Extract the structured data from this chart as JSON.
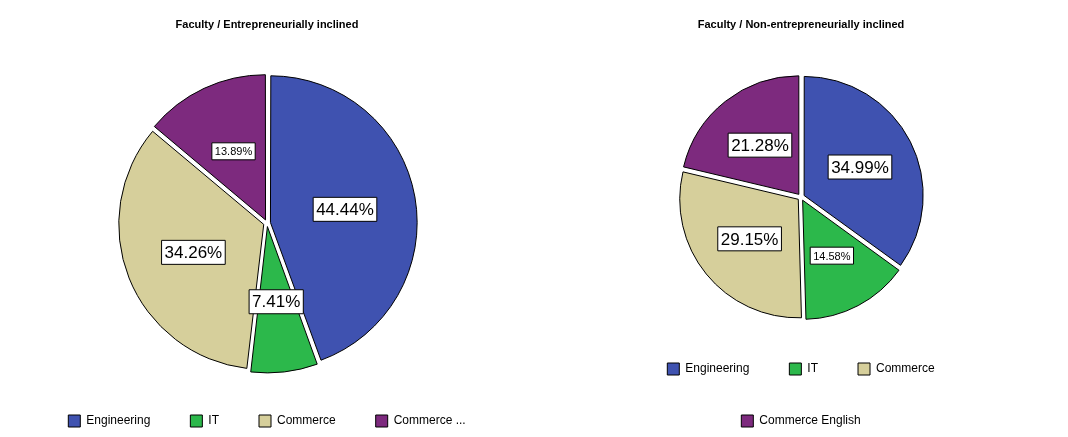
{
  "chart_data": [
    {
      "type": "pie",
      "title": "Faculty / Entrepreneurially inclined",
      "categories": [
        "Engineering",
        "IT",
        "Commerce",
        "Commerce ..."
      ],
      "values": [
        44.44,
        7.41,
        34.26,
        13.89
      ],
      "colors": [
        "#3f52b0",
        "#2cb84b",
        "#d6cf9b",
        "#7d2a7e"
      ],
      "value_labels": [
        "44.44%",
        "7.41%",
        "34.26%",
        "13.89%"
      ],
      "legend": "bottom"
    },
    {
      "type": "pie",
      "title": "Faculty / Non-entrepreneurially inclined",
      "categories": [
        "Engineering",
        "IT",
        "Commerce",
        "Commerce English"
      ],
      "values": [
        34.99,
        14.58,
        29.15,
        21.28
      ],
      "colors": [
        "#3f52b0",
        "#2cb84b",
        "#d6cf9b",
        "#7d2a7e"
      ],
      "value_labels": [
        "34.99%",
        "14.58%",
        "29.15%",
        "21.28%"
      ],
      "legend": "bottom"
    }
  ]
}
